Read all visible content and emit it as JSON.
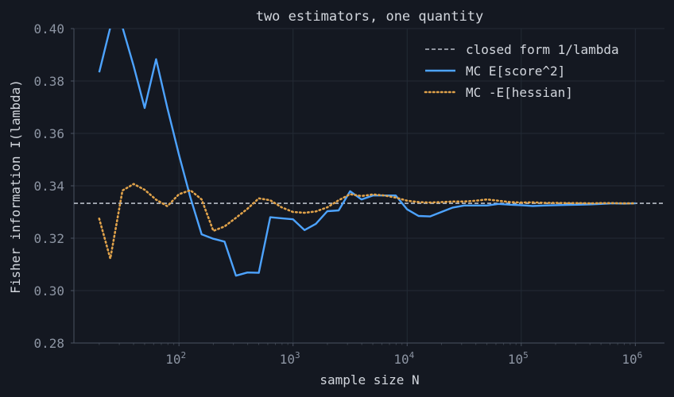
{
  "chart_data": {
    "type": "line",
    "title": "two estimators, one quantity",
    "xlabel": "sample size  N",
    "ylabel": "Fisher information  I(lambda)",
    "xscale": "log",
    "xlim": [
      12,
      1800000
    ],
    "ylim": [
      0.28,
      0.4
    ],
    "x_ticks": [
      {
        "value": 100,
        "base": "10",
        "exp": "2"
      },
      {
        "value": 1000,
        "base": "10",
        "exp": "3"
      },
      {
        "value": 10000,
        "base": "10",
        "exp": "4"
      },
      {
        "value": 100000,
        "base": "10",
        "exp": "5"
      },
      {
        "value": 1000000,
        "base": "10",
        "exp": "6"
      }
    ],
    "y_ticks": [
      "0.28",
      "0.30",
      "0.32",
      "0.34",
      "0.36",
      "0.38",
      "0.40"
    ],
    "grid": true,
    "legend_position": "top-right",
    "reference_line": {
      "name": "closed form  1/lambda",
      "value": 0.3333,
      "color": "#b8bec8",
      "style": "dashed"
    },
    "series": [
      {
        "name": "MC  E[score^2]",
        "color": "#4da3ff",
        "style": "solid",
        "x": [
          20,
          25,
          32,
          40,
          50,
          63,
          79,
          100,
          126,
          158,
          200,
          251,
          316,
          398,
          501,
          631,
          794,
          1000,
          1259,
          1585,
          1995,
          2512,
          3162,
          3981,
          5012,
          6310,
          7943,
          10000,
          12589,
          15849,
          19953,
          25119,
          31623,
          39811,
          50119,
          63096,
          79433,
          100000,
          125893,
          158489,
          199526,
          251189,
          316228,
          398107,
          501187,
          630957,
          794328,
          1000000
        ],
        "y": [
          0.3833,
          0.4005,
          0.4005,
          0.3858,
          0.3697,
          0.3883,
          0.3698,
          0.3518,
          0.3355,
          0.3215,
          0.3198,
          0.3187,
          0.3057,
          0.3069,
          0.3068,
          0.328,
          0.3276,
          0.3272,
          0.3231,
          0.3255,
          0.3303,
          0.3306,
          0.3379,
          0.3348,
          0.3363,
          0.3363,
          0.3363,
          0.331,
          0.3285,
          0.3283,
          0.33,
          0.3317,
          0.3325,
          0.3325,
          0.3325,
          0.3331,
          0.3328,
          0.3326,
          0.3323,
          0.3325,
          0.3326,
          0.3327,
          0.3328,
          0.3329,
          0.3331,
          0.3333,
          0.3332,
          0.3333
        ]
      },
      {
        "name": "MC  -E[hessian]",
        "color": "#e0a24a",
        "style": "dotted",
        "x": [
          20,
          25,
          32,
          40,
          50,
          63,
          79,
          100,
          126,
          158,
          200,
          251,
          316,
          398,
          501,
          631,
          794,
          1000,
          1259,
          1585,
          1995,
          2512,
          3162,
          3981,
          5012,
          6310,
          7943,
          10000,
          12589,
          15849,
          19953,
          25119,
          31623,
          39811,
          50119,
          63096,
          79433,
          100000,
          125893,
          158489,
          199526,
          251189,
          316228,
          398107,
          501187,
          630957,
          794328,
          1000000
        ],
        "y": [
          0.3275,
          0.3122,
          0.3382,
          0.3407,
          0.3385,
          0.3347,
          0.3322,
          0.3368,
          0.3383,
          0.3348,
          0.3228,
          0.3245,
          0.3278,
          0.3312,
          0.3352,
          0.3345,
          0.3318,
          0.33,
          0.3297,
          0.3302,
          0.3318,
          0.3345,
          0.3368,
          0.3361,
          0.3367,
          0.3363,
          0.3355,
          0.3343,
          0.3338,
          0.3336,
          0.3338,
          0.334,
          0.334,
          0.3343,
          0.3348,
          0.3343,
          0.3338,
          0.3336,
          0.3337,
          0.3335,
          0.3335,
          0.3334,
          0.3334,
          0.3333,
          0.3334,
          0.3334,
          0.3333,
          0.3333
        ]
      }
    ]
  }
}
